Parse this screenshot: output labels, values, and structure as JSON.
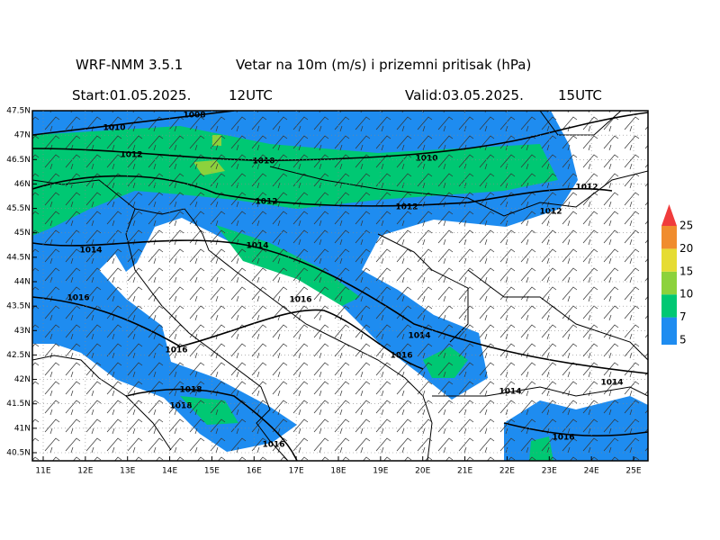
{
  "header": {
    "model": "WRF-NMM 3.5.1",
    "title": "Vetar na 10m (m/s) i prizemni pritisak (hPa)",
    "start": "Start:01.05.2025.",
    "start_time": "12UTC",
    "valid": "Valid:03.05.2025.",
    "valid_time": "15UTC"
  },
  "map": {
    "lat_labels": [
      "47.5N",
      "47N",
      "46.5N",
      "46N",
      "45.5N",
      "45N",
      "44.5N",
      "44N",
      "43.5N",
      "43N",
      "42.5N",
      "42N",
      "41.5N",
      "41N",
      "40.5N"
    ],
    "lon_labels": [
      "11E",
      "12E",
      "13E",
      "14E",
      "15E",
      "16E",
      "17E",
      "18E",
      "19E",
      "20E",
      "21E",
      "22E",
      "23E",
      "24E",
      "25E"
    ],
    "isobar_labels": [
      "1008",
      "1010",
      "1012",
      "1010",
      "1010",
      "1012",
      "1012",
      "1012",
      "1012",
      "1014",
      "1014",
      "1016",
      "1016",
      "1014",
      "1016",
      "1016",
      "1018",
      "1018",
      "1014",
      "1014",
      "1016",
      "1016"
    ]
  },
  "colorbar": {
    "labels": [
      "5",
      "7",
      "10",
      "15",
      "20",
      "25"
    ],
    "colors": [
      "#1e8cf0",
      "#00c873",
      "#8cd23c",
      "#e6dc32",
      "#f08c2d",
      "#f03c3c"
    ]
  }
}
